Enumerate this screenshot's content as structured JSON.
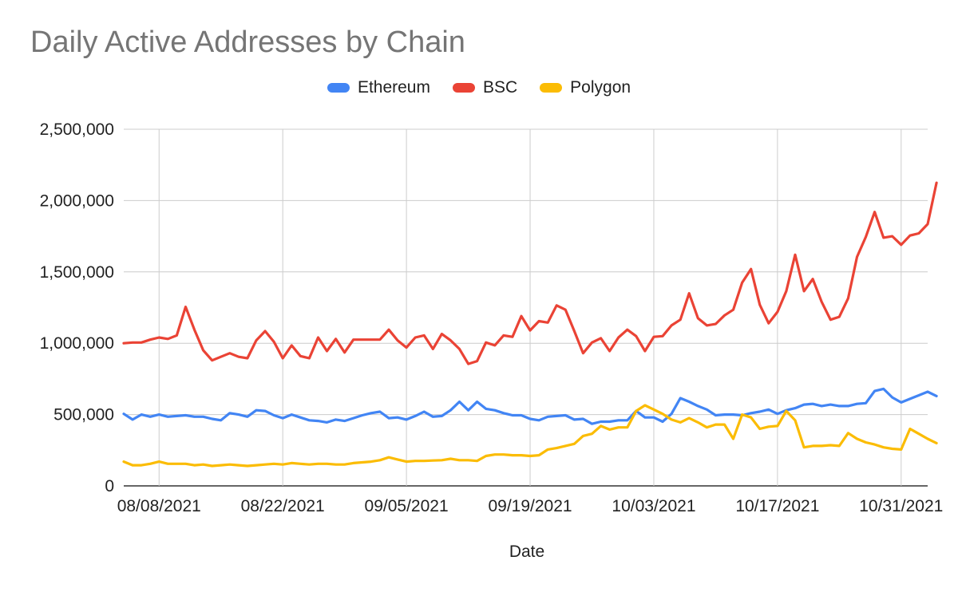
{
  "chart_data": {
    "type": "line",
    "title": "Daily Active Addresses by Chain",
    "xlabel": "Date",
    "ylabel": "",
    "ylim": [
      0,
      2500000
    ],
    "yticks": [
      0,
      500000,
      1000000,
      1500000,
      2000000,
      2500000
    ],
    "ytick_labels": [
      "0",
      "500,000",
      "1,000,000",
      "1,500,000",
      "2,000,000",
      "2,500,000"
    ],
    "xticks": [
      "2021-08-08",
      "2021-08-22",
      "2021-09-05",
      "2021-09-19",
      "2021-10-03",
      "2021-10-17",
      "2021-10-31"
    ],
    "xtick_labels": [
      "08/08/2021",
      "08/22/2021",
      "09/05/2021",
      "09/19/2021",
      "10/03/2021",
      "10/17/2021",
      "10/31/2021"
    ],
    "xlim": [
      "2021-08-04",
      "2021-11-03"
    ],
    "grid": "vertical and horizontal",
    "legend_position": "top",
    "start_date": "2021-08-04",
    "series": [
      {
        "name": "Ethereum",
        "color": "#4285f4",
        "values": [
          505000,
          465000,
          500000,
          485000,
          500000,
          485000,
          490000,
          495000,
          485000,
          485000,
          470000,
          460000,
          510000,
          500000,
          485000,
          530000,
          525000,
          495000,
          475000,
          500000,
          480000,
          460000,
          455000,
          445000,
          465000,
          455000,
          475000,
          495000,
          510000,
          520000,
          475000,
          480000,
          465000,
          490000,
          520000,
          485000,
          490000,
          530000,
          590000,
          530000,
          590000,
          540000,
          530000,
          510000,
          495000,
          495000,
          470000,
          460000,
          485000,
          490000,
          495000,
          465000,
          470000,
          435000,
          450000,
          450000,
          460000,
          460000,
          525000,
          480000,
          480000,
          450000,
          505000,
          615000,
          590000,
          560000,
          535000,
          495000,
          500000,
          500000,
          495000,
          510000,
          520000,
          535000,
          505000,
          530000,
          545000,
          570000,
          575000,
          560000,
          570000,
          560000,
          560000,
          575000,
          580000,
          665000,
          680000,
          620000,
          585000,
          610000,
          635000,
          660000,
          630000
        ]
      },
      {
        "name": "BSC",
        "color": "#ea4335",
        "values": [
          1000000,
          1005000,
          1005000,
          1025000,
          1040000,
          1030000,
          1055000,
          1255000,
          1095000,
          950000,
          880000,
          905000,
          930000,
          905000,
          895000,
          1020000,
          1085000,
          1010000,
          895000,
          985000,
          910000,
          895000,
          1040000,
          945000,
          1030000,
          935000,
          1025000,
          1025000,
          1025000,
          1025000,
          1095000,
          1020000,
          970000,
          1040000,
          1055000,
          960000,
          1065000,
          1020000,
          960000,
          855000,
          875000,
          1005000,
          985000,
          1055000,
          1045000,
          1190000,
          1090000,
          1155000,
          1145000,
          1265000,
          1235000,
          1085000,
          930000,
          1005000,
          1035000,
          945000,
          1040000,
          1095000,
          1050000,
          945000,
          1045000,
          1050000,
          1125000,
          1165000,
          1350000,
          1175000,
          1125000,
          1135000,
          1195000,
          1235000,
          1425000,
          1520000,
          1270000,
          1140000,
          1220000,
          1365000,
          1620000,
          1365000,
          1450000,
          1290000,
          1165000,
          1185000,
          1315000,
          1605000,
          1745000,
          1920000,
          1740000,
          1750000,
          1690000,
          1755000,
          1770000,
          1835000,
          2125000
        ]
      },
      {
        "name": "Polygon",
        "color": "#fbbc04",
        "values": [
          170000,
          145000,
          145000,
          155000,
          170000,
          155000,
          155000,
          155000,
          145000,
          150000,
          140000,
          145000,
          150000,
          145000,
          140000,
          145000,
          150000,
          155000,
          150000,
          160000,
          155000,
          150000,
          155000,
          155000,
          150000,
          150000,
          160000,
          165000,
          170000,
          180000,
          200000,
          185000,
          170000,
          175000,
          175000,
          178000,
          180000,
          190000,
          180000,
          180000,
          175000,
          210000,
          220000,
          220000,
          215000,
          215000,
          210000,
          215000,
          255000,
          265000,
          280000,
          295000,
          350000,
          365000,
          420000,
          395000,
          410000,
          410000,
          525000,
          565000,
          535000,
          505000,
          465000,
          445000,
          475000,
          445000,
          410000,
          430000,
          430000,
          330000,
          500000,
          480000,
          400000,
          415000,
          420000,
          525000,
          460000,
          270000,
          280000,
          280000,
          285000,
          280000,
          370000,
          330000,
          305000,
          290000,
          270000,
          260000,
          255000,
          400000,
          365000,
          330000,
          300000
        ]
      }
    ]
  }
}
